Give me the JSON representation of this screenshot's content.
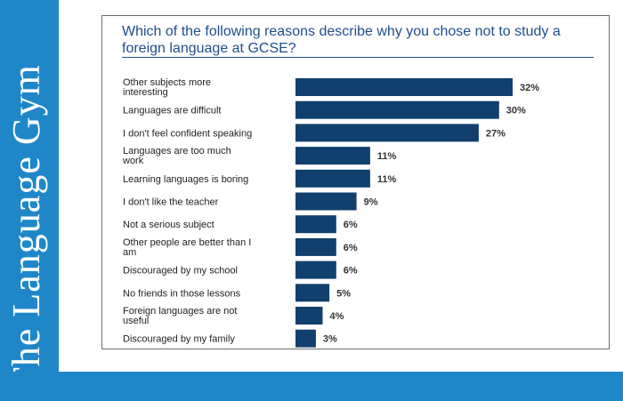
{
  "brand": {
    "text": "The Language Gym"
  },
  "chart_data": {
    "type": "bar",
    "orientation": "horizontal",
    "title": "Which of the following reasons describe why you chose not to study a foreign language at GCSE?",
    "categories": [
      [
        "Other subjects more",
        "interesting"
      ],
      [
        "Languages are difficult"
      ],
      [
        "I don't feel confident speaking"
      ],
      [
        "Languages are too much",
        "work"
      ],
      [
        "Learning languages is boring"
      ],
      [
        "I don't like the teacher"
      ],
      [
        "Not a serious subject"
      ],
      [
        "Other people are better than I",
        "am"
      ],
      [
        "Discouraged by my school"
      ],
      [
        "No friends in those lessons"
      ],
      [
        "Foreign languages are not",
        "useful"
      ],
      [
        "Discouraged by my family"
      ]
    ],
    "values": [
      32,
      30,
      27,
      11,
      11,
      9,
      6,
      6,
      6,
      5,
      4,
      3
    ],
    "value_suffix": "%",
    "bar_color": "#12406e",
    "xlim": [
      0,
      32
    ],
    "grid": false,
    "legend": "none"
  }
}
